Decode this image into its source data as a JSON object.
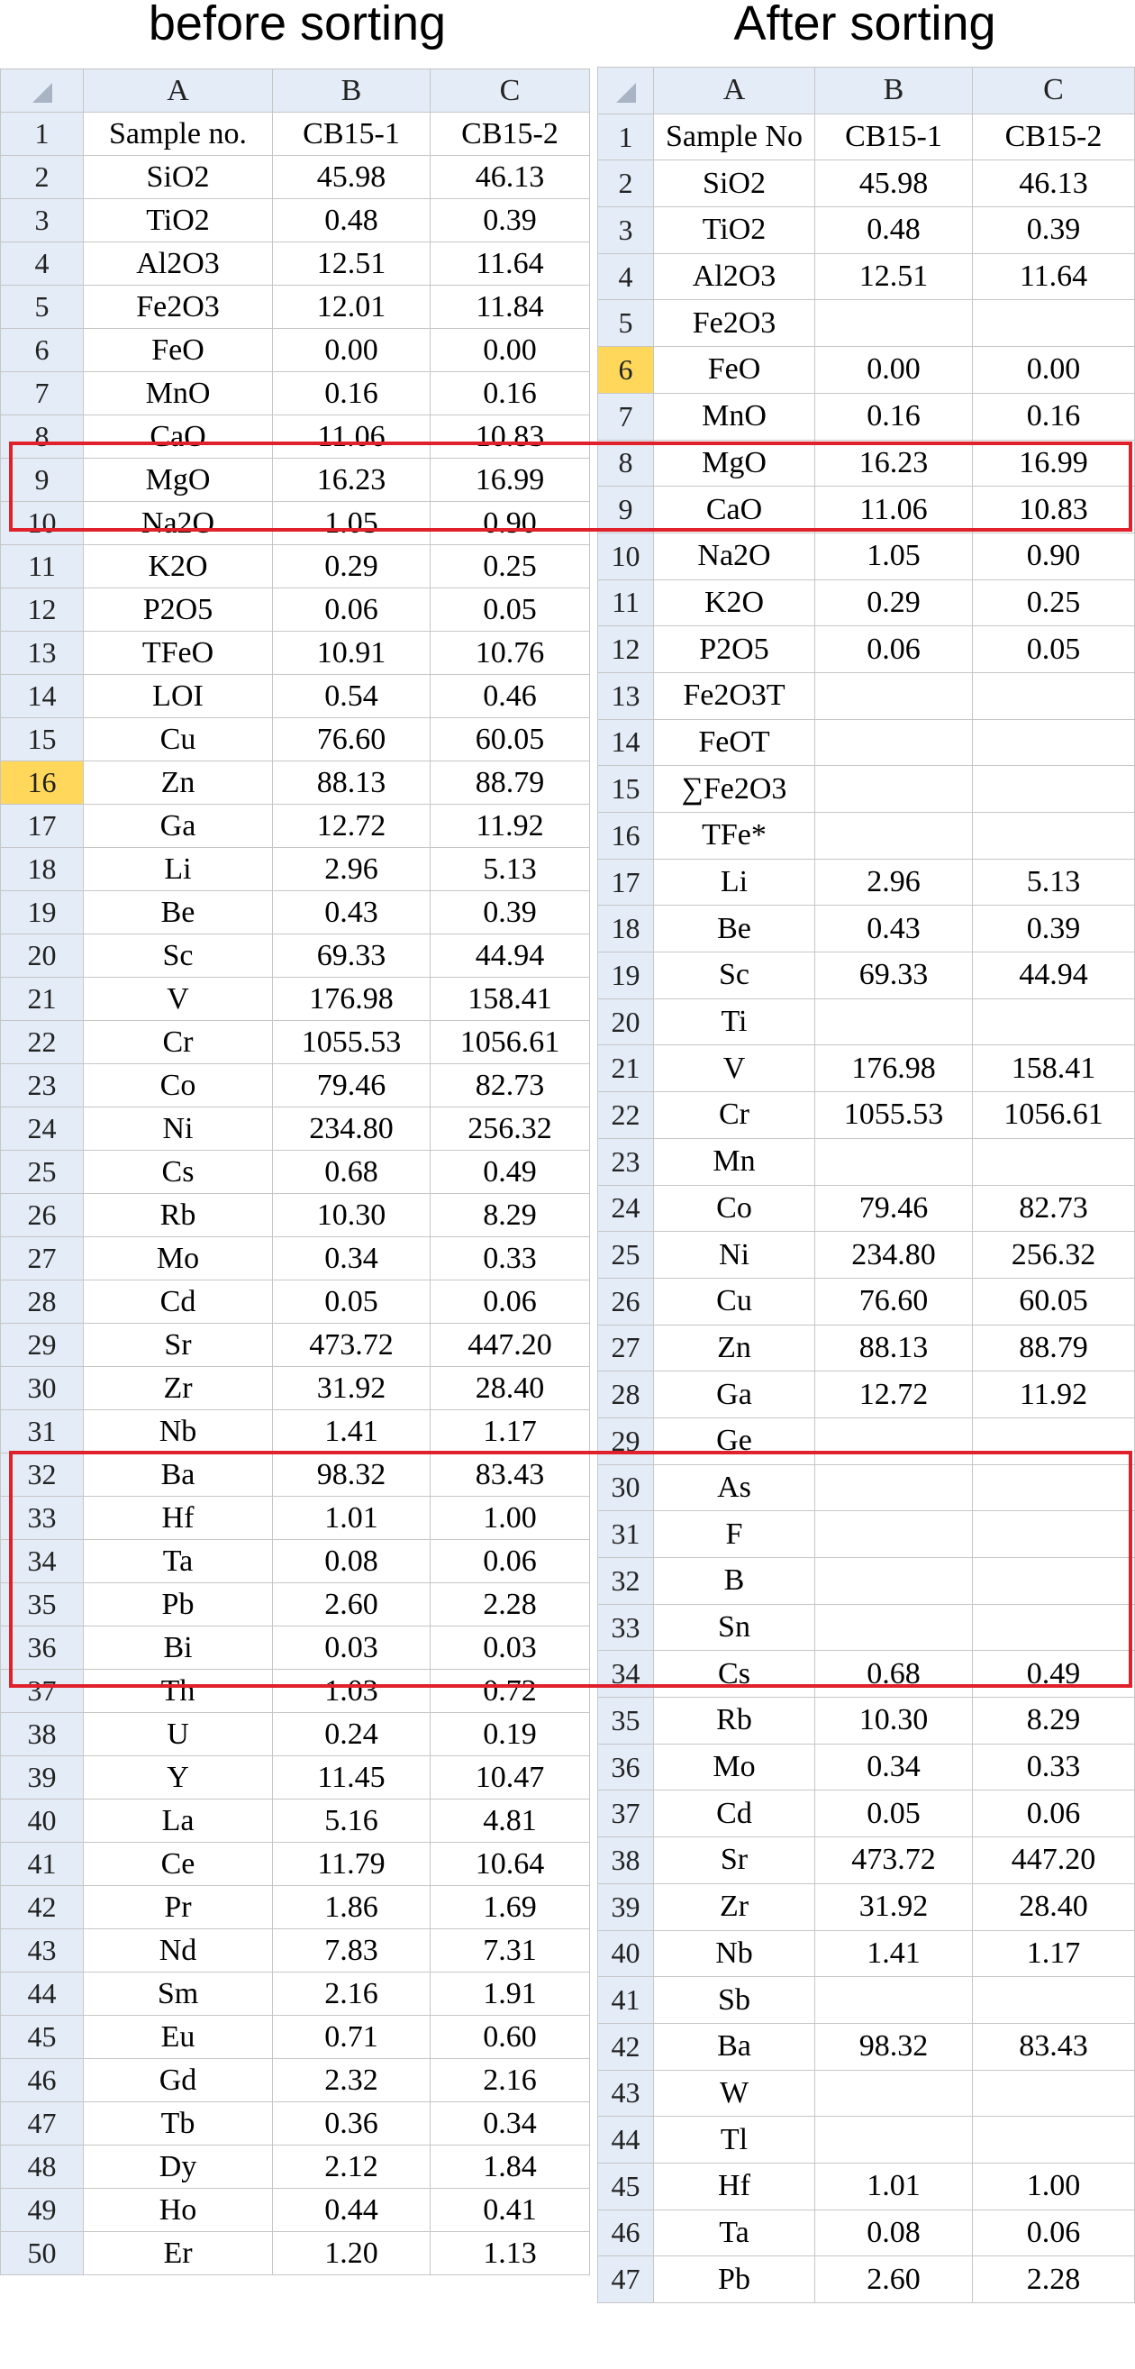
{
  "titles": {
    "left": "before sorting",
    "right": "After sorting"
  },
  "left": {
    "columns": [
      "A",
      "B",
      "C"
    ],
    "active_row": 16,
    "rows": [
      [
        "Sample no.",
        "CB15-1",
        "CB15-2"
      ],
      [
        "SiO2",
        "45.98",
        "46.13"
      ],
      [
        "TiO2",
        "0.48",
        "0.39"
      ],
      [
        "Al2O3",
        "12.51",
        "11.64"
      ],
      [
        "Fe2O3",
        "12.01",
        "11.84"
      ],
      [
        "FeO",
        "0.00",
        "0.00"
      ],
      [
        "MnO",
        "0.16",
        "0.16"
      ],
      [
        "CaO",
        "11.06",
        "10.83"
      ],
      [
        "MgO",
        "16.23",
        "16.99"
      ],
      [
        "Na2O",
        "1.05",
        "0.90"
      ],
      [
        "K2O",
        "0.29",
        "0.25"
      ],
      [
        "P2O5",
        "0.06",
        "0.05"
      ],
      [
        "TFeO",
        "10.91",
        "10.76"
      ],
      [
        "LOI",
        "0.54",
        "0.46"
      ],
      [
        "Cu",
        "76.60",
        "60.05"
      ],
      [
        "Zn",
        "88.13",
        "88.79"
      ],
      [
        "Ga",
        "12.72",
        "11.92"
      ],
      [
        "Li",
        "2.96",
        "5.13"
      ],
      [
        "Be",
        "0.43",
        "0.39"
      ],
      [
        "Sc",
        "69.33",
        "44.94"
      ],
      [
        "V",
        "176.98",
        "158.41"
      ],
      [
        "Cr",
        "1055.53",
        "1056.61"
      ],
      [
        "Co",
        "79.46",
        "82.73"
      ],
      [
        "Ni",
        "234.80",
        "256.32"
      ],
      [
        "Cs",
        "0.68",
        "0.49"
      ],
      [
        "Rb",
        "10.30",
        "8.29"
      ],
      [
        "Mo",
        "0.34",
        "0.33"
      ],
      [
        "Cd",
        "0.05",
        "0.06"
      ],
      [
        "Sr",
        "473.72",
        "447.20"
      ],
      [
        "Zr",
        "31.92",
        "28.40"
      ],
      [
        "Nb",
        "1.41",
        "1.17"
      ],
      [
        "Ba",
        "98.32",
        "83.43"
      ],
      [
        "Hf",
        "1.01",
        "1.00"
      ],
      [
        "Ta",
        "0.08",
        "0.06"
      ],
      [
        "Pb",
        "2.60",
        "2.28"
      ],
      [
        "Bi",
        "0.03",
        "0.03"
      ],
      [
        "Th",
        "1.03",
        "0.72"
      ],
      [
        "U",
        "0.24",
        "0.19"
      ],
      [
        "Y",
        "11.45",
        "10.47"
      ],
      [
        "La",
        "5.16",
        "4.81"
      ],
      [
        "Ce",
        "11.79",
        "10.64"
      ],
      [
        "Pr",
        "1.86",
        "1.69"
      ],
      [
        "Nd",
        "7.83",
        "7.31"
      ],
      [
        "Sm",
        "2.16",
        "1.91"
      ],
      [
        "Eu",
        "0.71",
        "0.60"
      ],
      [
        "Gd",
        "2.32",
        "2.16"
      ],
      [
        "Tb",
        "0.36",
        "0.34"
      ],
      [
        "Dy",
        "2.12",
        "1.84"
      ],
      [
        "Ho",
        "0.44",
        "0.41"
      ],
      [
        "Er",
        "1.20",
        "1.13"
      ]
    ]
  },
  "right": {
    "columns": [
      "A",
      "B",
      "C"
    ],
    "active_row": 6,
    "rows": [
      [
        "Sample No",
        "CB15-1",
        "CB15-2"
      ],
      [
        "SiO2",
        "45.98",
        "46.13"
      ],
      [
        "TiO2",
        "0.48",
        "0.39"
      ],
      [
        "Al2O3",
        "12.51",
        "11.64"
      ],
      [
        "Fe2O3",
        "",
        ""
      ],
      [
        "FeO",
        "0.00",
        "0.00"
      ],
      [
        "MnO",
        "0.16",
        "0.16"
      ],
      [
        "MgO",
        "16.23",
        "16.99"
      ],
      [
        "CaO",
        "11.06",
        "10.83"
      ],
      [
        "Na2O",
        "1.05",
        "0.90"
      ],
      [
        "K2O",
        "0.29",
        "0.25"
      ],
      [
        "P2O5",
        "0.06",
        "0.05"
      ],
      [
        "Fe2O3T",
        "",
        ""
      ],
      [
        "FeOT",
        "",
        ""
      ],
      [
        "∑Fe2O3",
        "",
        ""
      ],
      [
        "TFe*",
        "",
        ""
      ],
      [
        "Li",
        "2.96",
        "5.13"
      ],
      [
        "Be",
        "0.43",
        "0.39"
      ],
      [
        "Sc",
        "69.33",
        "44.94"
      ],
      [
        "Ti",
        "",
        ""
      ],
      [
        "V",
        "176.98",
        "158.41"
      ],
      [
        "Cr",
        "1055.53",
        "1056.61"
      ],
      [
        "Mn",
        "",
        ""
      ],
      [
        "Co",
        "79.46",
        "82.73"
      ],
      [
        "Ni",
        "234.80",
        "256.32"
      ],
      [
        "Cu",
        "76.60",
        "60.05"
      ],
      [
        "Zn",
        "88.13",
        "88.79"
      ],
      [
        "Ga",
        "12.72",
        "11.92"
      ],
      [
        "Ge",
        "",
        ""
      ],
      [
        "As",
        "",
        ""
      ],
      [
        "F",
        "",
        ""
      ],
      [
        "B",
        "",
        ""
      ],
      [
        "Sn",
        "",
        ""
      ],
      [
        "Cs",
        "0.68",
        "0.49"
      ],
      [
        "Rb",
        "10.30",
        "8.29"
      ],
      [
        "Mo",
        "0.34",
        "0.33"
      ],
      [
        "Cd",
        "0.05",
        "0.06"
      ],
      [
        "Sr",
        "473.72",
        "447.20"
      ],
      [
        "Zr",
        "31.92",
        "28.40"
      ],
      [
        "Nb",
        "1.41",
        "1.17"
      ],
      [
        "Sb",
        "",
        ""
      ],
      [
        "Ba",
        "98.32",
        "83.43"
      ],
      [
        "W",
        "",
        ""
      ],
      [
        "Tl",
        "",
        ""
      ],
      [
        "Hf",
        "1.01",
        "1.00"
      ],
      [
        "Ta",
        "0.08",
        "0.06"
      ],
      [
        "Pb",
        "2.60",
        "2.28"
      ]
    ]
  },
  "colors": {
    "highlight_border": "#e0202a",
    "active_row_header": "#ffd75a",
    "header_bg": "#e4ecf7"
  }
}
